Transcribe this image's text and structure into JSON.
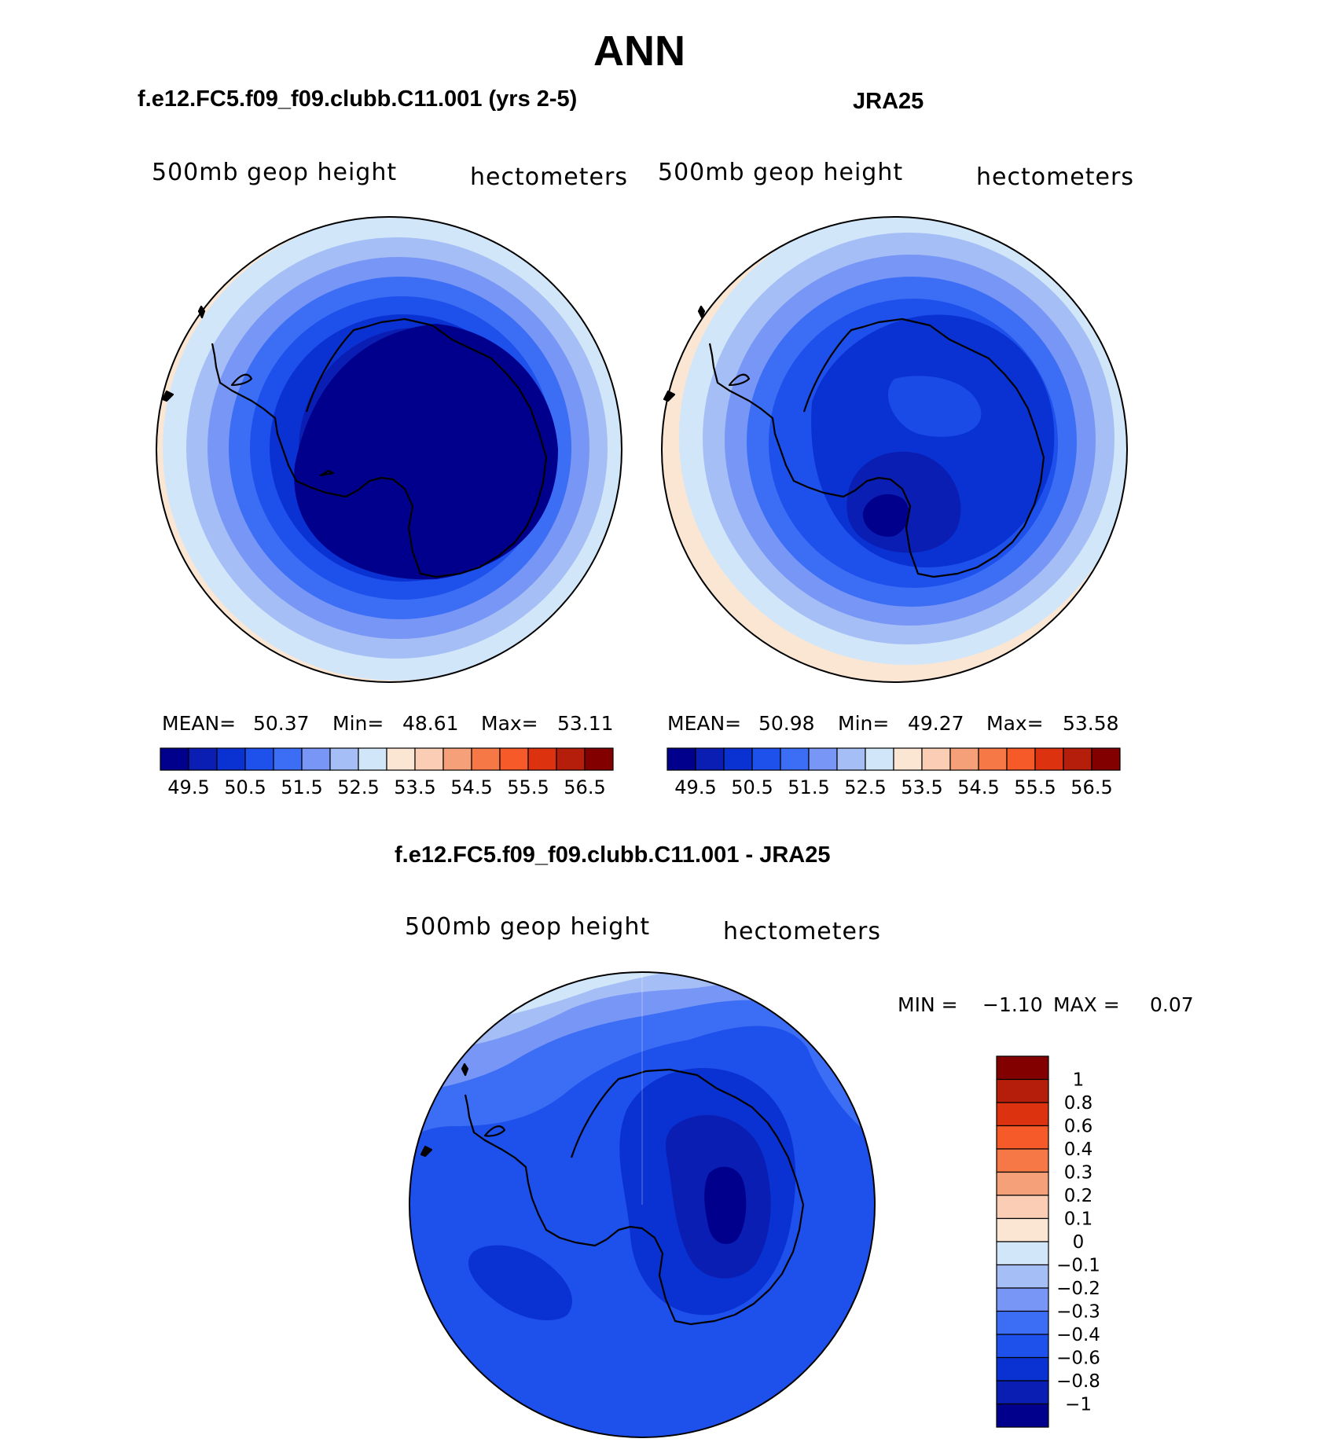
{
  "main_title": "ANN",
  "panels": [
    {
      "title": "f.e12.FC5.f09_f09.clubb.C11.001 (yrs 2-5)",
      "left_label": "500mb geop height",
      "right_label": "hectometers",
      "stats": {
        "mean_label": "MEAN=",
        "mean": "50.37",
        "min_label": "Min=",
        "min": "48.61",
        "max_label": "Max=",
        "max": "53.11"
      }
    },
    {
      "title": "JRA25",
      "left_label": "500mb geop height",
      "right_label": "hectometers",
      "stats": {
        "mean_label": "MEAN=",
        "mean": "50.98",
        "min_label": "Min=",
        "min": "49.27",
        "max_label": "Max=",
        "max": "53.58"
      }
    },
    {
      "title": "f.e12.FC5.f09_f09.clubb.C11.001 - JRA25",
      "left_label": "500mb geop height",
      "right_label": "hectometers",
      "stats": {
        "min_label": "MIN =",
        "min": "−1.10",
        "max_label": "MAX =",
        "max": "0.07"
      }
    }
  ],
  "colorbar_abs": {
    "labels": [
      "49.5",
      "50.5",
      "51.5",
      "52.5",
      "53.5",
      "54.5",
      "55.5",
      "56.5"
    ],
    "colors": [
      "#00008c",
      "#0a1eb4",
      "#0a32d2",
      "#1e50eb",
      "#3c6ef5",
      "#7896f5",
      "#a5bef5",
      "#d2e6fa",
      "#fae6d2",
      "#facdb4",
      "#f5a078",
      "#f57846",
      "#f55a28",
      "#dc3210",
      "#b41e0a",
      "#820000"
    ]
  },
  "colorbar_diff": {
    "labels": [
      "1",
      "0.8",
      "0.6",
      "0.4",
      "0.3",
      "0.2",
      "0.1",
      "0",
      "−0.1",
      "−0.2",
      "−0.3",
      "−0.4",
      "−0.6",
      "−0.8",
      "−1"
    ],
    "colors": [
      "#820000",
      "#b41e0a",
      "#dc3210",
      "#f55a28",
      "#f57846",
      "#f5a078",
      "#facdb4",
      "#fae6d2",
      "#d2e6fa",
      "#a5bef5",
      "#7896f5",
      "#3c6ef5",
      "#1e50eb",
      "#0a32d2",
      "#0a1eb4",
      "#00008c"
    ]
  }
}
